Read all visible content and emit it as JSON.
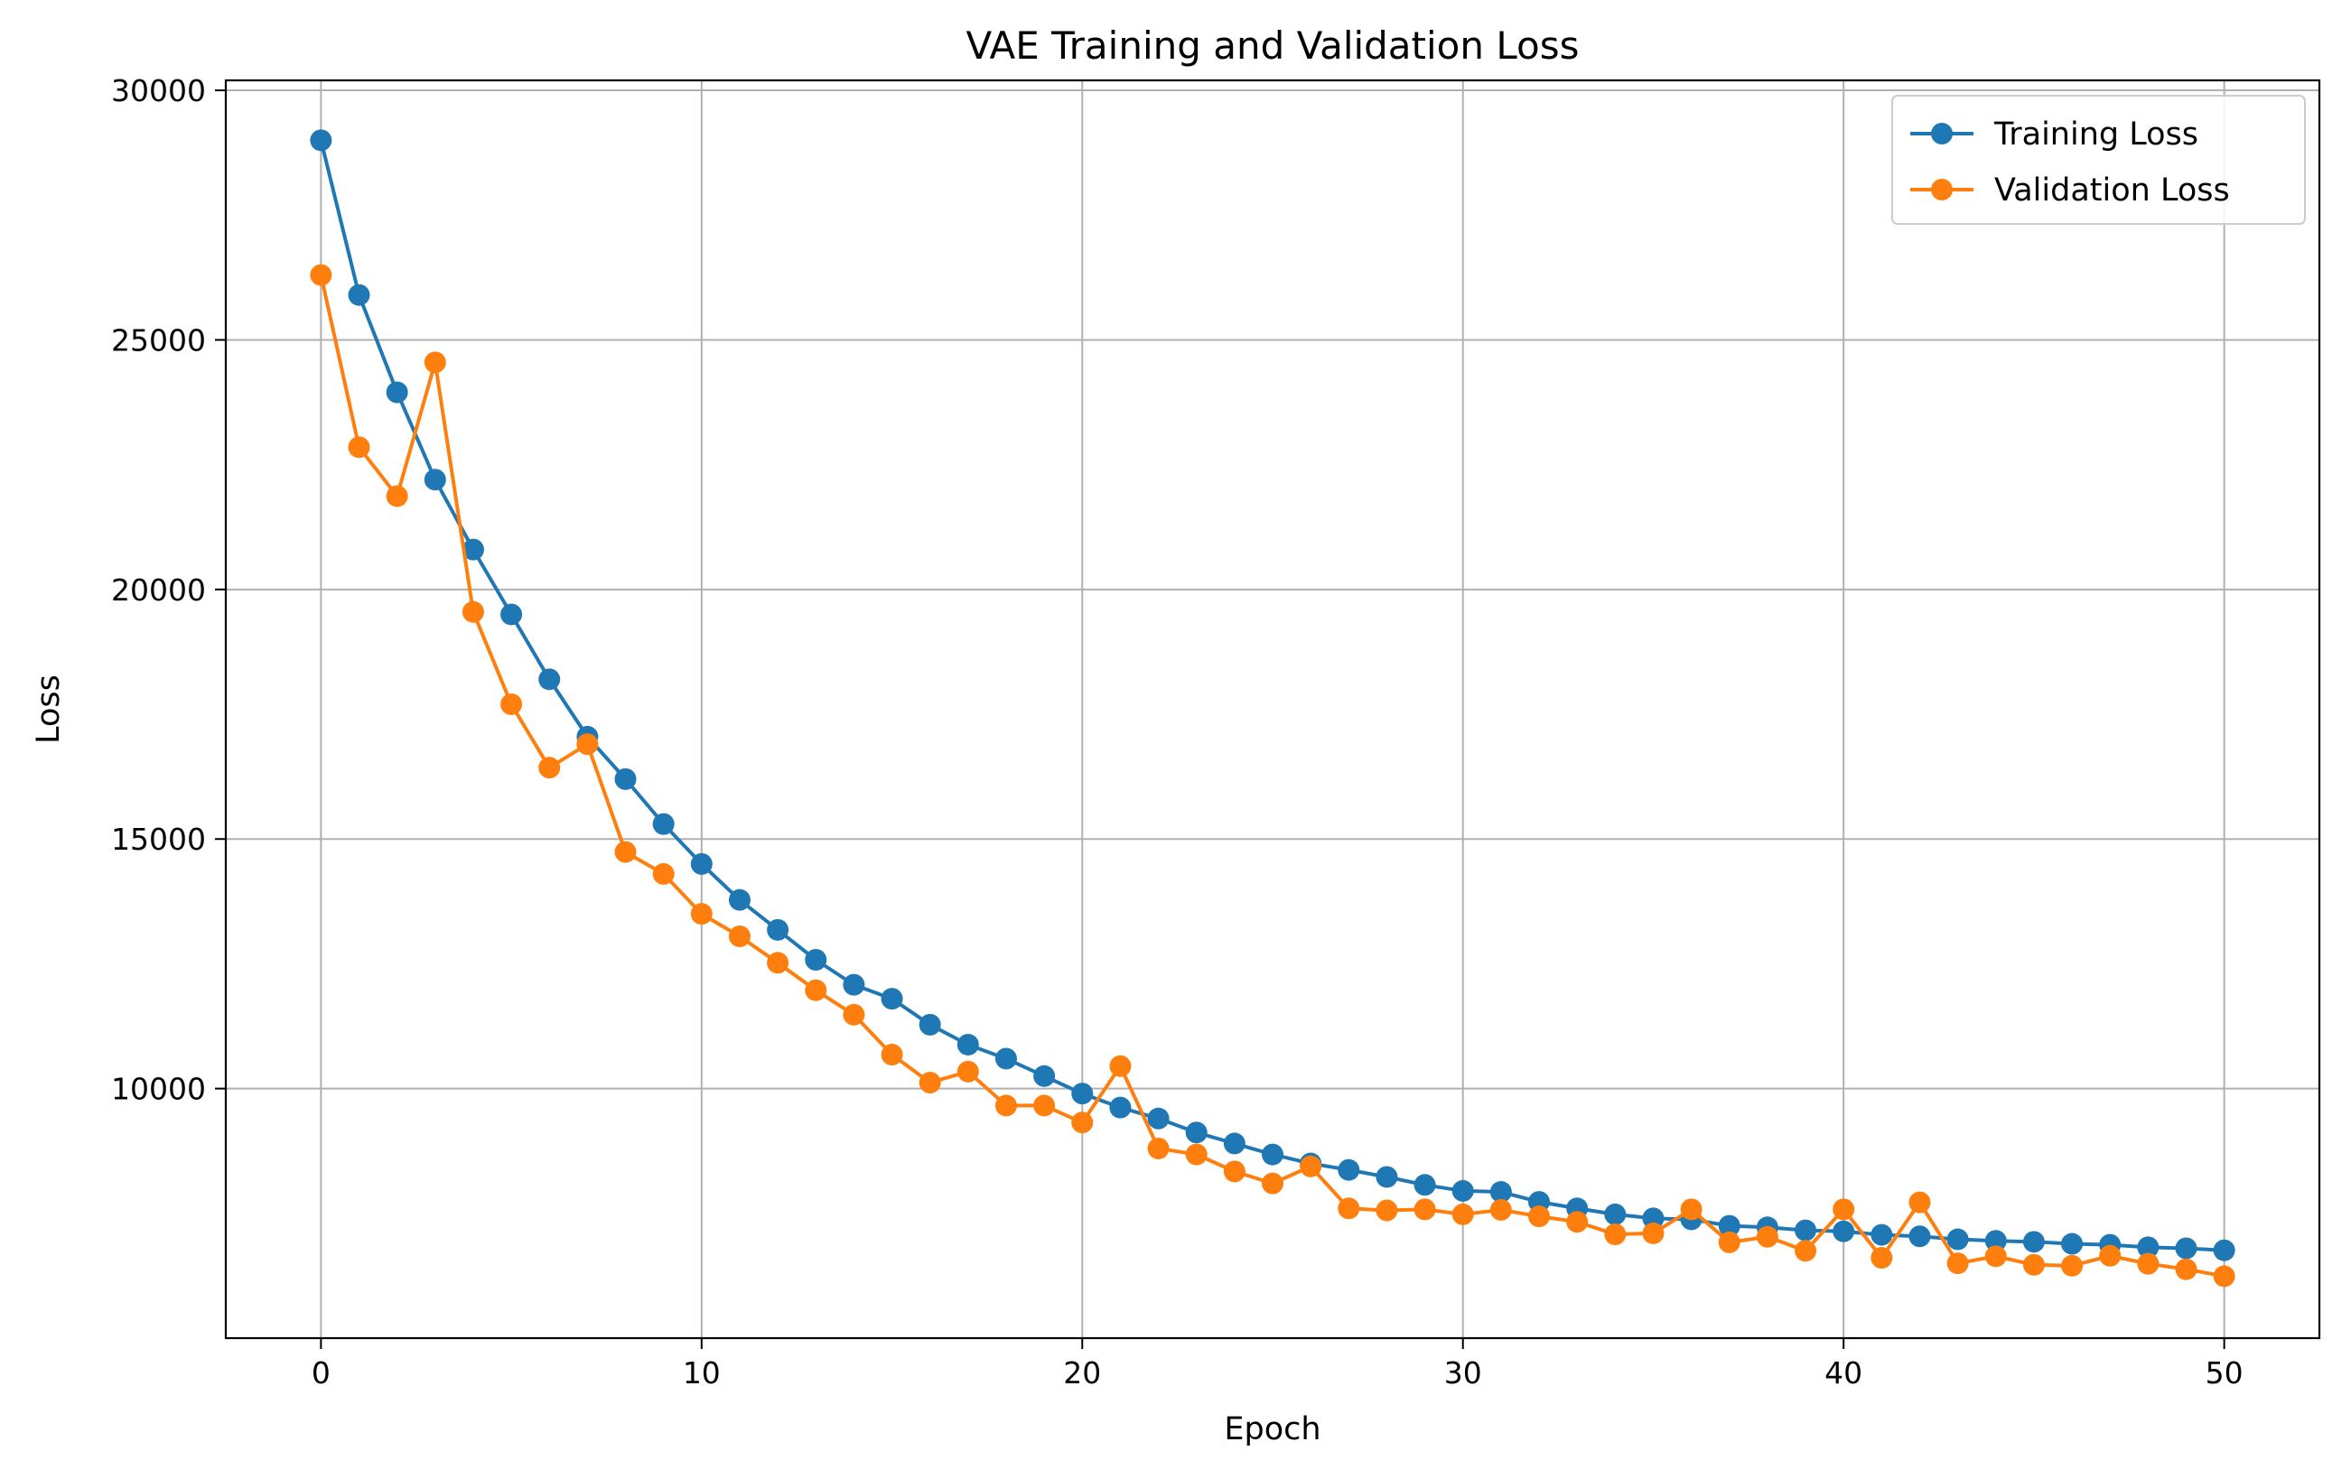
{
  "chart_data": {
    "type": "line",
    "title": "VAE Training and Validation Loss",
    "xlabel": "Epoch",
    "ylabel": "Loss",
    "xlim": [
      -2.5,
      52.5
    ],
    "ylim": [
      5000,
      30200
    ],
    "xticks": [
      0,
      10,
      20,
      30,
      40,
      50
    ],
    "yticks": [
      10000,
      15000,
      20000,
      25000,
      30000
    ],
    "grid": true,
    "legend_position": "top-right",
    "x": [
      0,
      1,
      2,
      3,
      4,
      5,
      6,
      7,
      8,
      9,
      10,
      11,
      12,
      13,
      14,
      15,
      16,
      17,
      18,
      19,
      20,
      21,
      22,
      23,
      24,
      25,
      26,
      27,
      28,
      29,
      30,
      31,
      32,
      33,
      34,
      35,
      36,
      37,
      38,
      39,
      40,
      41,
      42,
      43,
      44,
      45,
      46,
      47,
      48,
      49,
      50
    ],
    "series": [
      {
        "name": "Training Loss",
        "color": "#1f77b4",
        "marker": "circle",
        "values": [
          29000,
          25900,
          23950,
          22200,
          20800,
          19500,
          18200,
          17050,
          16200,
          15300,
          14500,
          13780,
          13180,
          12580,
          12080,
          11800,
          11280,
          10880,
          10600,
          10250,
          9900,
          9620,
          9400,
          9120,
          8900,
          8680,
          8500,
          8370,
          8230,
          8070,
          7950,
          7930,
          7730,
          7600,
          7480,
          7400,
          7380,
          7250,
          7220,
          7160,
          7140,
          7070,
          7040,
          6980,
          6950,
          6930,
          6890,
          6870,
          6820,
          6800,
          6760
        ]
      },
      {
        "name": "Validation Loss",
        "color": "#ff7f0e",
        "marker": "circle",
        "values": [
          26300,
          22850,
          21870,
          24550,
          19550,
          17700,
          16430,
          16900,
          14740,
          14300,
          13500,
          13050,
          12520,
          11970,
          11480,
          10680,
          10120,
          10340,
          9660,
          9660,
          9320,
          10450,
          8800,
          8680,
          8340,
          8100,
          8440,
          7600,
          7560,
          7580,
          7480,
          7570,
          7440,
          7330,
          7080,
          7100,
          7580,
          6920,
          7030,
          6750,
          7580,
          6610,
          7720,
          6500,
          6640,
          6470,
          6450,
          6650,
          6490,
          6380,
          6240
        ]
      }
    ]
  }
}
